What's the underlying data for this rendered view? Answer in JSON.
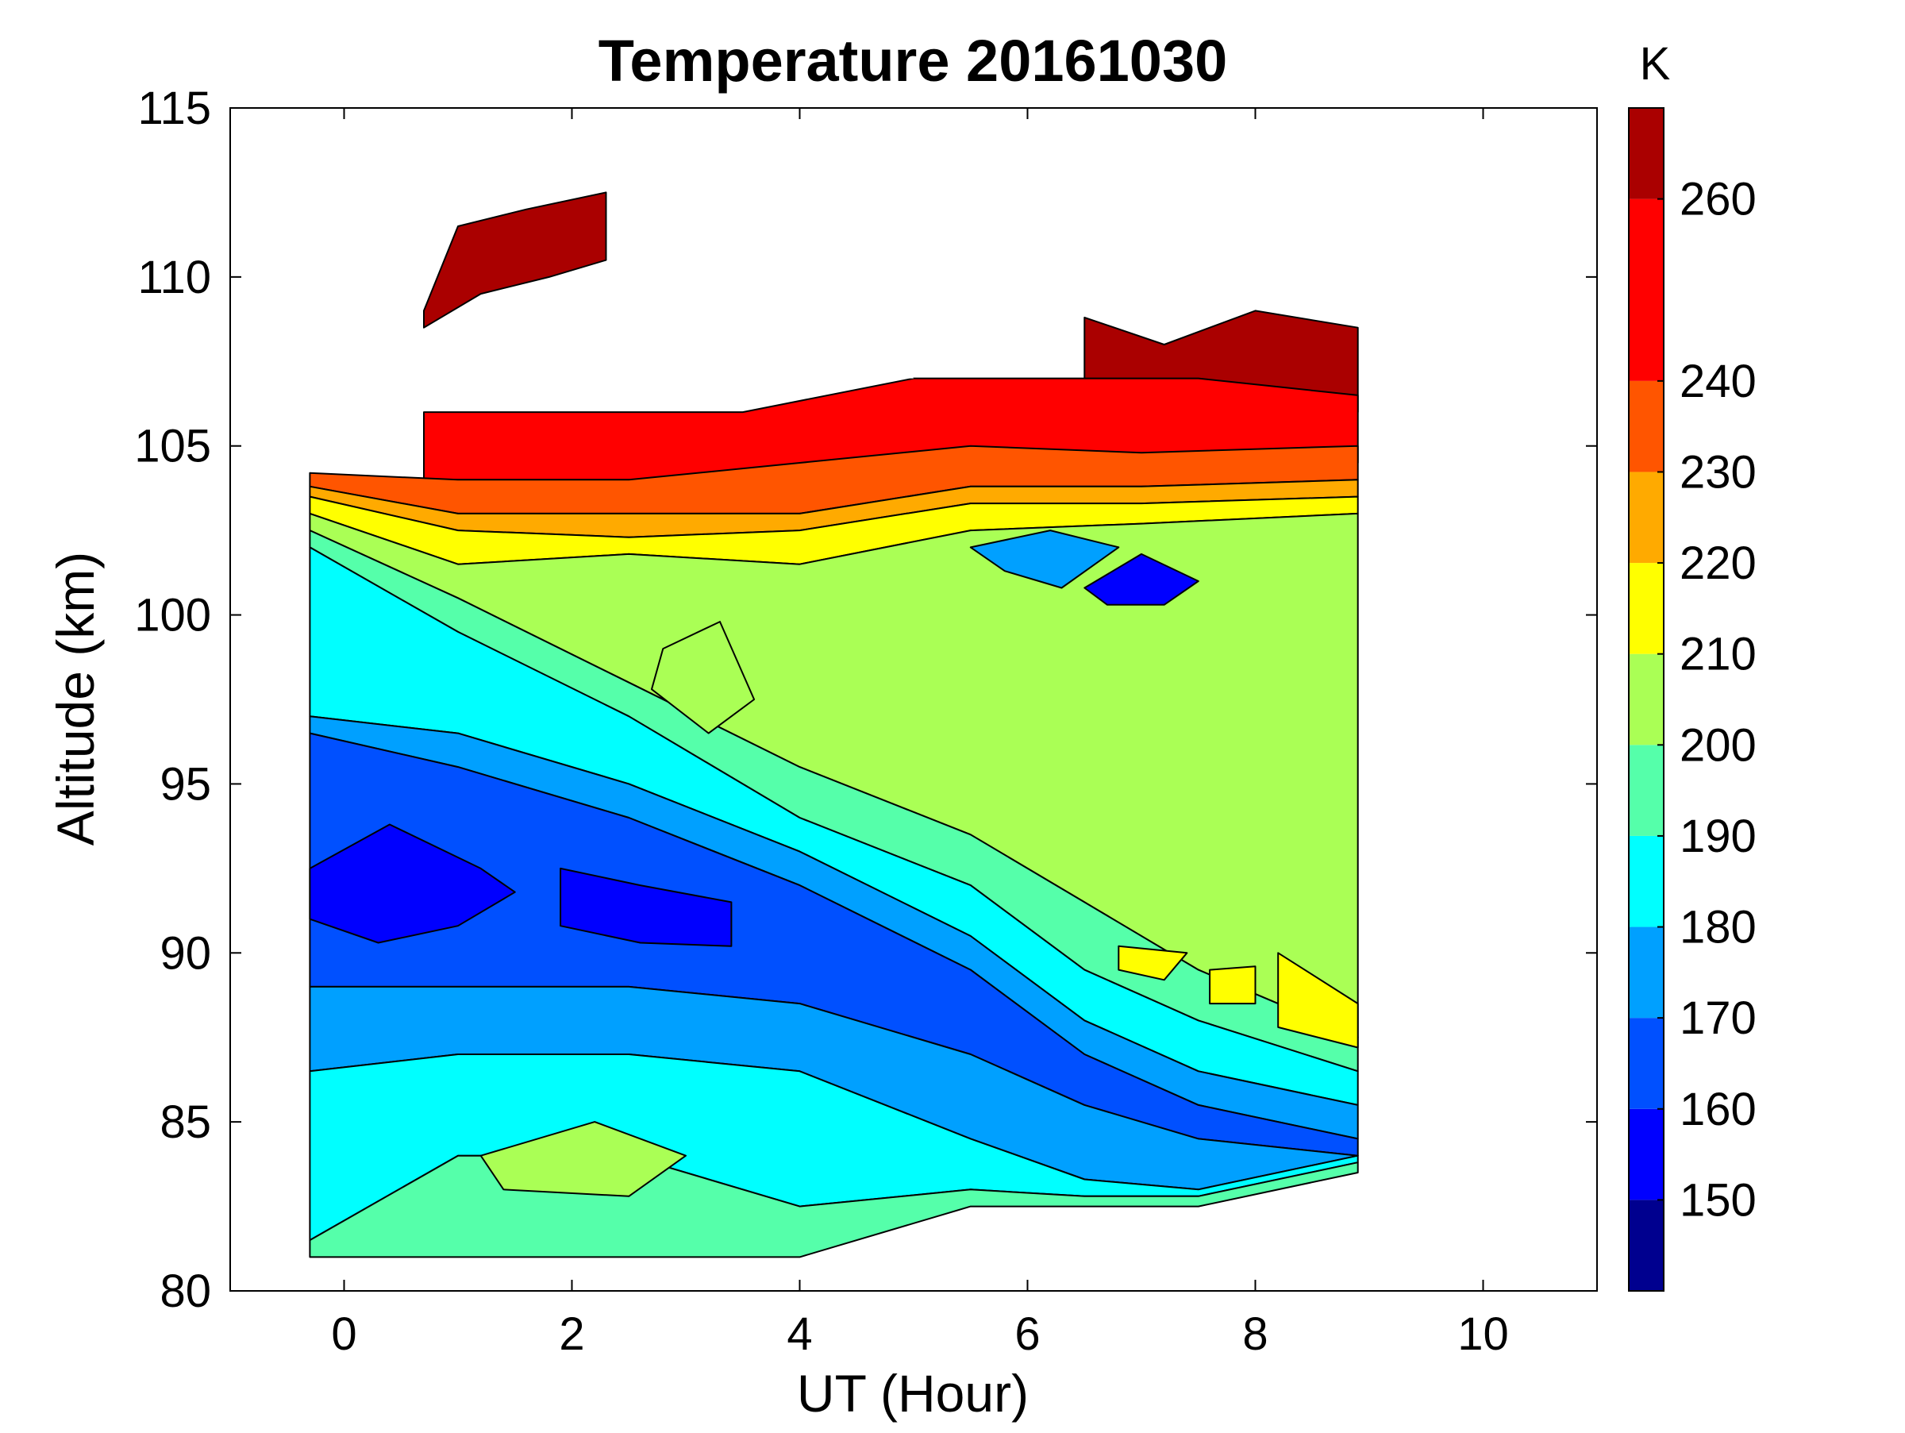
{
  "chart_data": {
    "type": "heatmap",
    "subtype": "filled-contour",
    "title": "Temperature 20161030",
    "xlabel": "UT (Hour)",
    "ylabel": "Altitude (km)",
    "colorbar_label": "K",
    "xlim": [
      -1,
      11
    ],
    "ylim": [
      80,
      115
    ],
    "x_ticks": [
      0,
      2,
      4,
      6,
      8,
      10
    ],
    "y_ticks": [
      80,
      85,
      90,
      95,
      100,
      105,
      110,
      115
    ],
    "data_x_range": [
      -0.3,
      8.9
    ],
    "data_y_range": [
      81,
      112.5
    ],
    "colorbar": {
      "levels": [
        140,
        150,
        160,
        170,
        180,
        190,
        200,
        210,
        220,
        230,
        240,
        260,
        270
      ],
      "colors": [
        "#00008f",
        "#0000ff",
        "#0050ff",
        "#00a0ff",
        "#00ffff",
        "#55ffaa",
        "#aaff55",
        "#ffff00",
        "#ffaa00",
        "#ff5500",
        "#ff0000",
        "#aa0000"
      ],
      "tick_labels": [
        150,
        160,
        170,
        180,
        190,
        200,
        210,
        220,
        230,
        240,
        260
      ]
    },
    "bands": [
      {
        "value": 270,
        "lower": [
          [
            0.7,
            108.5
          ],
          [
            1.2,
            109.5
          ],
          [
            1.8,
            110
          ],
          [
            2.3,
            110.5
          ]
        ],
        "upper": [
          [
            0.7,
            109
          ],
          [
            1.0,
            111.5
          ],
          [
            1.6,
            112
          ],
          [
            2.3,
            112.5
          ]
        ]
      },
      {
        "value": 270,
        "lower": [
          [
            6.5,
            106.5
          ],
          [
            7.2,
            106
          ],
          [
            8,
            106.2
          ],
          [
            8.9,
            106
          ]
        ],
        "upper": [
          [
            6.5,
            108.8
          ],
          [
            7.2,
            108
          ],
          [
            8,
            109
          ],
          [
            8.9,
            108.5
          ]
        ]
      },
      {
        "value": 250,
        "lower": [
          [
            0.7,
            104
          ],
          [
            2,
            104
          ],
          [
            3.5,
            104
          ],
          [
            5,
            104
          ],
          [
            6.5,
            104
          ],
          [
            7.5,
            104.5
          ],
          [
            8.9,
            104.5
          ]
        ],
        "upper": [
          [
            0.7,
            106
          ],
          [
            2,
            106
          ],
          [
            3.5,
            106
          ],
          [
            5,
            107
          ],
          [
            6.5,
            107
          ],
          [
            7.5,
            107
          ],
          [
            8.9,
            106.5
          ]
        ]
      },
      {
        "value": 235,
        "lower": [
          [
            -0.3,
            103.8
          ],
          [
            1,
            103
          ],
          [
            2.5,
            103
          ],
          [
            4,
            103
          ],
          [
            5.5,
            103.8
          ],
          [
            7,
            103.8
          ],
          [
            8.9,
            104
          ]
        ],
        "upper": [
          [
            -0.3,
            104.2
          ],
          [
            1,
            104
          ],
          [
            2.5,
            104
          ],
          [
            4,
            104.5
          ],
          [
            5.5,
            105
          ],
          [
            7,
            104.8
          ],
          [
            8.9,
            105
          ]
        ]
      },
      {
        "value": 225,
        "lower": [
          [
            -0.3,
            103.5
          ],
          [
            1,
            102.5
          ],
          [
            2.5,
            102.3
          ],
          [
            4,
            102.5
          ],
          [
            5.5,
            103.3
          ],
          [
            7,
            103.3
          ],
          [
            8.9,
            103.5
          ]
        ],
        "upper": [
          [
            -0.3,
            103.8
          ],
          [
            1,
            103
          ],
          [
            2.5,
            103
          ],
          [
            4,
            103
          ],
          [
            5.5,
            103.8
          ],
          [
            7,
            103.8
          ],
          [
            8.9,
            104
          ]
        ]
      },
      {
        "value": 215,
        "lower": [
          [
            -0.3,
            103
          ],
          [
            1,
            101.5
          ],
          [
            2.5,
            101.8
          ],
          [
            4,
            101.5
          ],
          [
            5.5,
            102.5
          ],
          [
            7,
            102.7
          ],
          [
            8.9,
            103
          ]
        ],
        "upper": [
          [
            -0.3,
            103.5
          ],
          [
            1,
            102.5
          ],
          [
            2.5,
            102.3
          ],
          [
            4,
            102.5
          ],
          [
            5.5,
            103.3
          ],
          [
            7,
            103.3
          ],
          [
            8.9,
            103.5
          ]
        ]
      },
      {
        "value": 205,
        "lower": [
          [
            -0.3,
            102.5
          ],
          [
            1,
            100.5
          ],
          [
            2.5,
            98
          ],
          [
            4,
            95.5
          ],
          [
            5.5,
            93.5
          ],
          [
            6.5,
            91.5
          ],
          [
            7.5,
            89.5
          ],
          [
            8.9,
            87.5
          ]
        ],
        "upper": [
          [
            -0.3,
            103
          ],
          [
            1,
            101.5
          ],
          [
            2.5,
            101.8
          ],
          [
            4,
            101.5
          ],
          [
            5.5,
            102.5
          ],
          [
            7,
            102.7
          ],
          [
            8.9,
            103
          ]
        ]
      },
      {
        "value": 195,
        "lower": [
          [
            -0.3,
            102
          ],
          [
            1,
            99.5
          ],
          [
            2.5,
            97
          ],
          [
            4,
            94
          ],
          [
            5.5,
            92
          ],
          [
            6.5,
            89.5
          ],
          [
            7.5,
            88
          ],
          [
            8.9,
            86.5
          ]
        ],
        "upper": [
          [
            -0.3,
            102.5
          ],
          [
            1,
            100.5
          ],
          [
            2.5,
            98
          ],
          [
            4,
            95.5
          ],
          [
            5.5,
            93.5
          ],
          [
            6.5,
            91.5
          ],
          [
            7.5,
            89.5
          ],
          [
            8.9,
            87.5
          ]
        ]
      },
      {
        "value": 185,
        "lower": [
          [
            -0.3,
            97
          ],
          [
            1,
            96.5
          ],
          [
            2.5,
            95
          ],
          [
            4,
            93
          ],
          [
            5.5,
            90.5
          ],
          [
            6.5,
            88
          ],
          [
            7.5,
            86.5
          ],
          [
            8.9,
            85.5
          ]
        ],
        "upper": [
          [
            -0.3,
            102
          ],
          [
            1,
            99.5
          ],
          [
            2.5,
            97
          ],
          [
            4,
            94
          ],
          [
            5.5,
            92
          ],
          [
            6.5,
            89.5
          ],
          [
            7.5,
            88
          ],
          [
            8.9,
            86.5
          ]
        ]
      },
      {
        "value": 175,
        "lower": [
          [
            -0.3,
            96.5
          ],
          [
            1,
            95.5
          ],
          [
            2.5,
            94
          ],
          [
            4,
            92
          ],
          [
            5.5,
            89.5
          ],
          [
            6.5,
            87
          ],
          [
            7.5,
            85.5
          ],
          [
            8.9,
            84.5
          ]
        ],
        "upper": [
          [
            -0.3,
            97
          ],
          [
            1,
            96.5
          ],
          [
            2.5,
            95
          ],
          [
            4,
            93
          ],
          [
            5.5,
            90.5
          ],
          [
            6.5,
            88
          ],
          [
            7.5,
            86.5
          ],
          [
            8.9,
            85.5
          ]
        ]
      },
      {
        "value": 165,
        "lower": [
          [
            -0.3,
            89
          ],
          [
            1,
            89
          ],
          [
            2.5,
            89
          ],
          [
            4,
            88.5
          ],
          [
            5.5,
            87
          ],
          [
            6.5,
            85.5
          ],
          [
            7.5,
            84.5
          ],
          [
            8.9,
            84
          ]
        ],
        "upper": [
          [
            -0.3,
            96.5
          ],
          [
            1,
            95.5
          ],
          [
            2.5,
            94
          ],
          [
            4,
            92
          ],
          [
            5.5,
            89.5
          ],
          [
            6.5,
            87
          ],
          [
            7.5,
            85.5
          ],
          [
            8.9,
            84.5
          ]
        ]
      },
      {
        "value": 175,
        "lower": [
          [
            -0.3,
            86.5
          ],
          [
            1,
            87
          ],
          [
            2.5,
            87
          ],
          [
            4,
            86.5
          ],
          [
            5.5,
            84.5
          ],
          [
            6.5,
            83.3
          ],
          [
            7.5,
            83
          ],
          [
            8.9,
            84
          ]
        ],
        "upper": [
          [
            -0.3,
            89
          ],
          [
            1,
            89
          ],
          [
            2.5,
            89
          ],
          [
            4,
            88.5
          ],
          [
            5.5,
            87
          ],
          [
            6.5,
            85.5
          ],
          [
            7.5,
            84.5
          ],
          [
            8.9,
            84
          ]
        ]
      },
      {
        "value": 185,
        "lower": [
          [
            -0.3,
            81.5
          ],
          [
            1,
            84
          ],
          [
            2.5,
            84
          ],
          [
            4,
            82.5
          ],
          [
            5.5,
            83
          ],
          [
            6.5,
            82.8
          ],
          [
            7.5,
            82.8
          ],
          [
            8.9,
            83.8
          ]
        ],
        "upper": [
          [
            -0.3,
            86.5
          ],
          [
            1,
            87
          ],
          [
            2.5,
            87
          ],
          [
            4,
            86.5
          ],
          [
            5.5,
            84.5
          ],
          [
            6.5,
            83.3
          ],
          [
            7.5,
            83
          ],
          [
            8.9,
            84
          ]
        ]
      },
      {
        "value": 195,
        "lower": [
          [
            -0.3,
            81
          ],
          [
            1,
            81
          ],
          [
            2.5,
            81
          ],
          [
            4,
            81
          ],
          [
            5.5,
            82.5
          ],
          [
            6.5,
            82.5
          ],
          [
            7.5,
            82.5
          ],
          [
            8.9,
            83.5
          ]
        ],
        "upper": [
          [
            -0.3,
            81.5
          ],
          [
            1,
            84
          ],
          [
            2.5,
            84
          ],
          [
            4,
            82.5
          ],
          [
            5.5,
            83
          ],
          [
            6.5,
            82.8
          ],
          [
            7.5,
            82.8
          ],
          [
            8.9,
            83.8
          ]
        ]
      }
    ],
    "blobs": [
      {
        "value": 155,
        "points": [
          [
            -0.3,
            92.5
          ],
          [
            0.4,
            93.8
          ],
          [
            1.2,
            92.5
          ],
          [
            1.5,
            91.8
          ],
          [
            1.0,
            90.8
          ],
          [
            0.3,
            90.3
          ],
          [
            -0.3,
            91
          ]
        ]
      },
      {
        "value": 155,
        "points": [
          [
            1.9,
            92.5
          ],
          [
            2.6,
            92
          ],
          [
            3.4,
            91.5
          ],
          [
            3.4,
            90.2
          ],
          [
            2.6,
            90.3
          ],
          [
            1.9,
            90.8
          ]
        ]
      },
      {
        "value": 155,
        "points": [
          [
            6.5,
            100.8
          ],
          [
            7.0,
            101.8
          ],
          [
            7.5,
            101
          ],
          [
            7.2,
            100.3
          ],
          [
            6.7,
            100.3
          ]
        ]
      },
      {
        "value": 175,
        "points": [
          [
            5.5,
            102
          ],
          [
            6.2,
            102.5
          ],
          [
            6.8,
            102
          ],
          [
            6.3,
            100.8
          ],
          [
            5.8,
            101.3
          ]
        ]
      },
      {
        "value": 205,
        "points": [
          [
            2.8,
            99
          ],
          [
            3.3,
            99.8
          ],
          [
            3.6,
            97.5
          ],
          [
            3.2,
            96.5
          ],
          [
            2.7,
            97.8
          ]
        ]
      },
      {
        "value": 205,
        "points": [
          [
            1.2,
            84
          ],
          [
            2.2,
            85
          ],
          [
            3.0,
            84
          ],
          [
            2.5,
            82.8
          ],
          [
            1.4,
            83
          ]
        ]
      },
      {
        "value": 215,
        "points": [
          [
            6.8,
            90.2
          ],
          [
            7.4,
            90
          ],
          [
            7.2,
            89.2
          ],
          [
            6.8,
            89.5
          ]
        ]
      },
      {
        "value": 215,
        "points": [
          [
            7.6,
            89.5
          ],
          [
            8.0,
            89.6
          ],
          [
            8.0,
            88.5
          ],
          [
            7.6,
            88.5
          ]
        ]
      },
      {
        "value": 215,
        "points": [
          [
            8.2,
            90
          ],
          [
            8.9,
            88.5
          ],
          [
            8.9,
            87.2
          ],
          [
            8.2,
            87.8
          ]
        ]
      }
    ],
    "missing_data_holes": [
      [
        [
          0.9,
          107.5
        ],
        [
          1.2,
          108.3
        ],
        [
          1.5,
          107.5
        ],
        [
          1.2,
          106.8
        ]
      ],
      [
        [
          4.0,
          107.5
        ],
        [
          4.9,
          107.5
        ],
        [
          5.0,
          107
        ],
        [
          4.3,
          107
        ]
      ]
    ]
  }
}
